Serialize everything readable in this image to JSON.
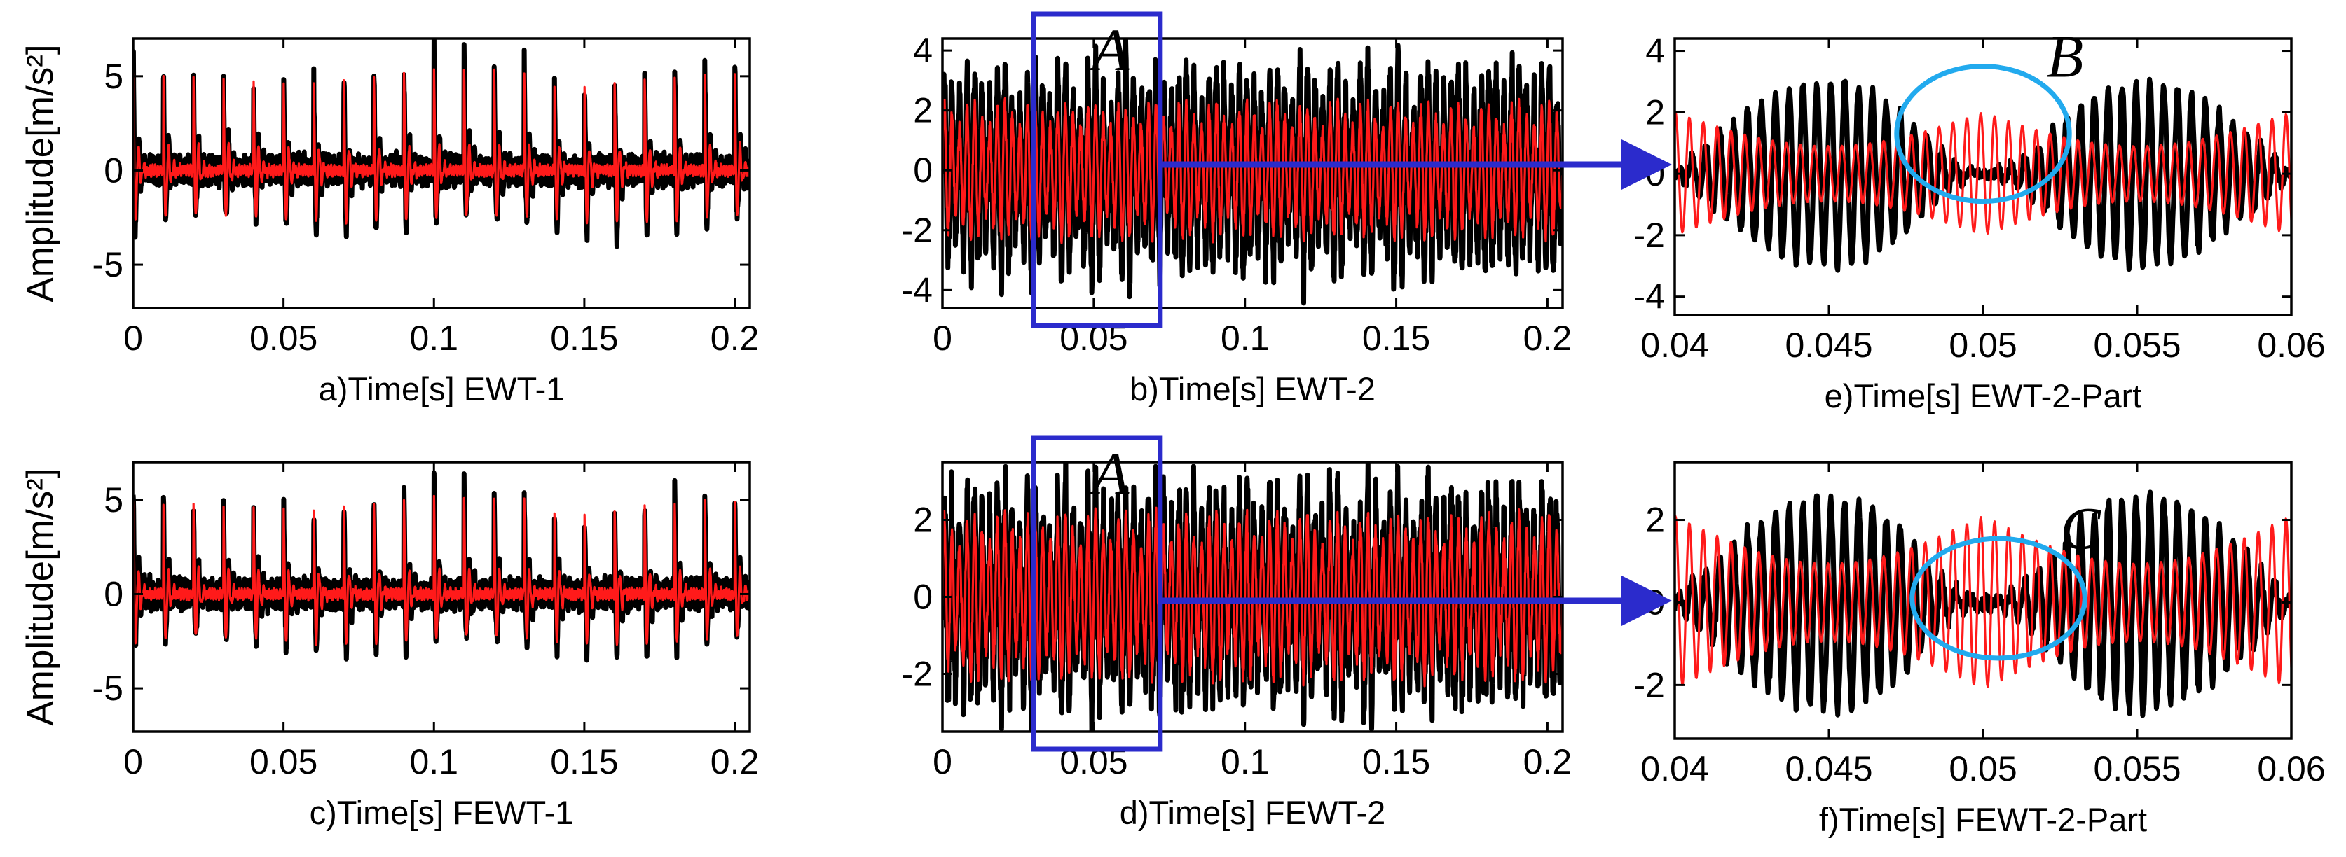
{
  "palette": {
    "signal": "#000000",
    "component": "#ff1a1a",
    "zoom_box": "#2b2bcc",
    "arrow": "#2b2bcc",
    "ellipse": "#22aaee"
  },
  "chart_data": [
    {
      "id": "a",
      "type": "line",
      "caption": "a)Time[s] EWT-1",
      "ylabel": "Amplitude[m/s²]",
      "xlim": [
        0,
        0.205
      ],
      "ylim": [
        -7.3,
        7.0
      ],
      "xticks": [
        0,
        0.05,
        0.1,
        0.15,
        0.2
      ],
      "xtick_labels": [
        "0",
        "0.05",
        "0.1",
        "0.15",
        "0.2"
      ],
      "yticks": [
        -5,
        0,
        5
      ],
      "ytick_labels": [
        "-5",
        "0",
        "5"
      ],
      "signal_model": "impulse_train",
      "impulse_period_s": 0.01,
      "peak_amplitude": 5.5,
      "series": [
        {
          "role": "signal",
          "color": "#000000",
          "peak": 5.5
        },
        {
          "role": "component",
          "color": "#ff1a1a",
          "peak": 5.2
        }
      ]
    },
    {
      "id": "b",
      "type": "line",
      "caption": "b)Time[s] EWT-2",
      "xlim": [
        0,
        0.205
      ],
      "ylim": [
        -4.6,
        4.4
      ],
      "xticks": [
        0,
        0.05,
        0.1,
        0.15,
        0.2
      ],
      "xtick_labels": [
        "0",
        "0.05",
        "0.1",
        "0.15",
        "0.2"
      ],
      "yticks": [
        -4,
        -2,
        0,
        2,
        4
      ],
      "ytick_labels": [
        "-4",
        "-2",
        "0",
        "2",
        "4"
      ],
      "signal_model": "modulated",
      "carrier_period_s": 0.0025,
      "envelope_period_s": 0.01,
      "series": [
        {
          "role": "signal",
          "color": "#000000",
          "peak": 3.2
        },
        {
          "role": "component",
          "color": "#ff1a1a",
          "peak": 2.2
        }
      ],
      "zoom_box": {
        "x": [
          0.03,
          0.072
        ],
        "label": "A"
      }
    },
    {
      "id": "e",
      "type": "line",
      "caption": "e)Time[s] EWT-2-Part",
      "xlim": [
        0.04,
        0.06
      ],
      "ylim": [
        -4.6,
        4.4
      ],
      "xticks": [
        0.04,
        0.045,
        0.05,
        0.055,
        0.06
      ],
      "xtick_labels": [
        "0.04",
        "0.045",
        "0.05",
        "0.055",
        "0.06"
      ],
      "yticks": [
        -4,
        -2,
        0,
        2,
        4
      ],
      "ytick_labels": [
        "-4",
        "-2",
        "0",
        "2",
        "4"
      ],
      "signal_model": "zoom_part",
      "series": [
        {
          "role": "signal",
          "color": "#000000",
          "peak": 3.0
        },
        {
          "role": "component",
          "color": "#ff1a1a",
          "peak": 2.0
        }
      ],
      "ellipse": {
        "x": 0.05,
        "y": 1.3,
        "rx": 0.0028,
        "ry": 2.2,
        "label": "B"
      }
    },
    {
      "id": "c",
      "type": "line",
      "caption": "c)Time[s] FEWT-1",
      "ylabel": "Amplitude[m/s²]",
      "xlim": [
        0,
        0.205
      ],
      "ylim": [
        -7.3,
        7.0
      ],
      "xticks": [
        0,
        0.05,
        0.1,
        0.15,
        0.2
      ],
      "xtick_labels": [
        "0",
        "0.05",
        "0.1",
        "0.15",
        "0.2"
      ],
      "yticks": [
        -5,
        0,
        5
      ],
      "ytick_labels": [
        "-5",
        "0",
        "5"
      ],
      "signal_model": "impulse_train",
      "impulse_period_s": 0.01,
      "peak_amplitude": 5.3,
      "series": [
        {
          "role": "signal",
          "color": "#000000",
          "peak": 5.3
        },
        {
          "role": "component",
          "color": "#ff1a1a",
          "peak": 5.0
        }
      ]
    },
    {
      "id": "d",
      "type": "line",
      "caption": "d)Time[s] FEWT-2",
      "xlim": [
        0,
        0.205
      ],
      "ylim": [
        -3.5,
        3.5
      ],
      "xticks": [
        0,
        0.05,
        0.1,
        0.15,
        0.2
      ],
      "xtick_labels": [
        "0",
        "0.05",
        "0.1",
        "0.15",
        "0.2"
      ],
      "yticks": [
        -2,
        0,
        2
      ],
      "ytick_labels": [
        "-2",
        "0",
        "2"
      ],
      "signal_model": "modulated",
      "carrier_period_s": 0.0025,
      "envelope_period_s": 0.01,
      "series": [
        {
          "role": "signal",
          "color": "#000000",
          "peak": 2.6
        },
        {
          "role": "component",
          "color": "#ff1a1a",
          "peak": 2.1
        }
      ],
      "zoom_box": {
        "x": [
          0.03,
          0.072
        ],
        "label": "A"
      }
    },
    {
      "id": "f",
      "type": "line",
      "caption": "f)Time[s] FEWT-2-Part",
      "xlim": [
        0.04,
        0.06
      ],
      "ylim": [
        -3.3,
        3.4
      ],
      "xticks": [
        0.04,
        0.045,
        0.05,
        0.055,
        0.06
      ],
      "xtick_labels": [
        "0.04",
        "0.045",
        "0.05",
        "0.055",
        "0.06"
      ],
      "yticks": [
        -2,
        0,
        2
      ],
      "ytick_labels": [
        "-2",
        "0",
        "2"
      ],
      "signal_model": "zoom_part",
      "series": [
        {
          "role": "signal",
          "color": "#000000",
          "peak": 2.6
        },
        {
          "role": "component",
          "color": "#ff1a1a",
          "peak": 2.1
        }
      ],
      "ellipse": {
        "x": 0.0505,
        "y": 0.1,
        "rx": 0.0028,
        "ry": 1.45,
        "label": "C"
      }
    }
  ]
}
